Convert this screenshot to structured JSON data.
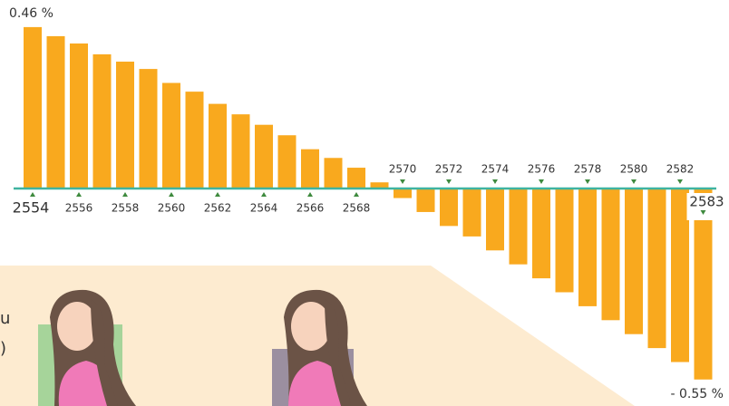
{
  "chart_data": {
    "type": "bar",
    "categories": [
      "2554",
      null,
      "2556",
      null,
      "2558",
      null,
      "2560",
      null,
      "2562",
      null,
      "2564",
      null,
      "2566",
      null,
      "2568",
      null,
      "2570",
      null,
      "2572",
      null,
      "2574",
      null,
      "2576",
      null,
      "2578",
      null,
      "2580",
      null,
      "2582",
      "2583"
    ],
    "values": [
      0.46,
      0.434,
      0.413,
      0.382,
      0.361,
      0.34,
      0.3,
      0.275,
      0.24,
      0.21,
      0.18,
      0.15,
      0.11,
      0.085,
      0.057,
      0.015,
      -0.03,
      -0.07,
      -0.11,
      -0.14,
      -0.18,
      -0.22,
      -0.26,
      -0.3,
      -0.34,
      -0.38,
      -0.42,
      -0.46,
      -0.5,
      -0.55
    ],
    "value_labels": [
      "0.46 %",
      null,
      null,
      null,
      null,
      null,
      null,
      null,
      null,
      null,
      null,
      null,
      null,
      null,
      null,
      null,
      null,
      null,
      null,
      null,
      null,
      null,
      null,
      null,
      null,
      null,
      null,
      null,
      null,
      "- 0.55 %"
    ],
    "color": "#f9a91e",
    "ylim": [
      -0.6,
      0.5
    ]
  },
  "caption_fragments": [
    "u",
    ")"
  ]
}
